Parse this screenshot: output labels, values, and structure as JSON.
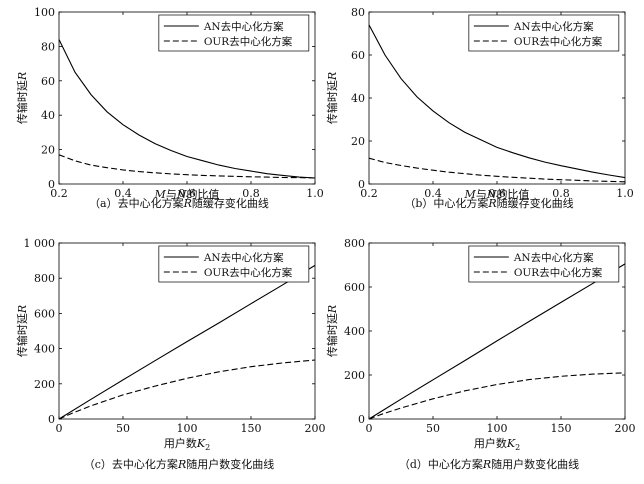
{
  "chart_data": [
    {
      "id": "a",
      "type": "line",
      "caption": "（a）去中心化方案R随缓存变化曲线",
      "xlabel": "M与N的比值",
      "ylabel": "传输时延R",
      "xlim": [
        0.2,
        1.0
      ],
      "ylim": [
        0,
        100
      ],
      "xticks": [
        "0.2",
        "0.4",
        "0.6",
        "0.8",
        "1.0"
      ],
      "yticks": [
        "0",
        "20",
        "40",
        "60",
        "80",
        "100"
      ],
      "legend": [
        "AN去中心化方案",
        "OUR去中心化方案"
      ],
      "series": [
        {
          "name": "AN去中心化方案",
          "style": "solid",
          "x": [
            0.2,
            0.25,
            0.3,
            0.35,
            0.4,
            0.45,
            0.5,
            0.55,
            0.6,
            0.65,
            0.7,
            0.75,
            0.8,
            0.85,
            0.9,
            0.95,
            1.0
          ],
          "values": [
            84,
            65,
            52,
            42,
            34.5,
            28.5,
            23.5,
            19.5,
            16,
            13.5,
            11,
            9,
            7.5,
            6,
            5,
            4,
            3.5
          ]
        },
        {
          "name": "OUR去中心化方案",
          "style": "dashed",
          "x": [
            0.2,
            0.25,
            0.3,
            0.35,
            0.4,
            0.45,
            0.5,
            0.55,
            0.6,
            0.65,
            0.7,
            0.75,
            0.8,
            0.85,
            0.9,
            0.95,
            1.0
          ],
          "values": [
            17,
            13.5,
            11,
            9.5,
            8.2,
            7.2,
            6.5,
            5.9,
            5.4,
            5,
            4.7,
            4.4,
            4.2,
            4,
            3.8,
            3.7,
            3.5
          ]
        }
      ]
    },
    {
      "id": "b",
      "type": "line",
      "caption": "（b）中心化方案R随缓存变化曲线",
      "xlabel": "M与N的比值",
      "ylabel": "传输时延R",
      "xlim": [
        0.2,
        1.0
      ],
      "ylim": [
        0,
        80
      ],
      "xticks": [
        "0.2",
        "0.4",
        "0.6",
        "0.8",
        "1.0"
      ],
      "yticks": [
        "0",
        "20",
        "40",
        "60",
        "80"
      ],
      "legend": [
        "AN去中心化方案",
        "OUR去中心化方案"
      ],
      "series": [
        {
          "name": "AN去中心化方案",
          "style": "solid",
          "x": [
            0.2,
            0.25,
            0.3,
            0.35,
            0.4,
            0.45,
            0.5,
            0.55,
            0.6,
            0.65,
            0.7,
            0.75,
            0.8,
            0.85,
            0.9,
            0.95,
            1.0
          ],
          "values": [
            74,
            60,
            49,
            40.5,
            34,
            28.5,
            24,
            20.5,
            17,
            14.5,
            12.2,
            10.2,
            8.5,
            7,
            5.5,
            4.2,
            3
          ]
        },
        {
          "name": "OUR去中心化方案",
          "style": "dashed",
          "x": [
            0.2,
            0.25,
            0.3,
            0.35,
            0.4,
            0.45,
            0.5,
            0.55,
            0.6,
            0.65,
            0.7,
            0.75,
            0.8,
            0.85,
            0.9,
            0.95,
            1.0
          ],
          "values": [
            12,
            10,
            8.6,
            7.4,
            6.4,
            5.5,
            4.8,
            4.1,
            3.6,
            3.1,
            2.7,
            2.3,
            2,
            1.7,
            1.4,
            1.2,
            1
          ]
        }
      ]
    },
    {
      "id": "c",
      "type": "line",
      "caption": "（c）去中心化方案R随用户数变化曲线",
      "xlabel": "用户数K2",
      "ylabel": "传输时延R",
      "xlim": [
        0,
        200
      ],
      "ylim": [
        0,
        1000
      ],
      "xticks": [
        "0",
        "50",
        "100",
        "150",
        "200"
      ],
      "yticks": [
        "0",
        "200",
        "400",
        "600",
        "800",
        "1 000"
      ],
      "legend": [
        "AN去中心化方案",
        "OUR去中心化方案"
      ],
      "series": [
        {
          "name": "AN去中心化方案",
          "style": "solid",
          "x": [
            0,
            25,
            50,
            75,
            100,
            125,
            150,
            175,
            200
          ],
          "values": [
            0,
            112,
            222,
            331,
            440,
            546,
            655,
            763,
            873
          ]
        },
        {
          "name": "OUR去中心化方案",
          "style": "dashed",
          "x": [
            0,
            10,
            25,
            50,
            75,
            100,
            125,
            150,
            175,
            200
          ],
          "values": [
            0,
            32,
            75,
            137,
            187,
            231,
            268,
            297,
            319,
            335
          ]
        }
      ]
    },
    {
      "id": "d",
      "type": "line",
      "caption": "（d）中心化方案R随用户数变化曲线",
      "xlabel": "用户数K2",
      "ylabel": "传输时延R",
      "xlim": [
        0,
        200
      ],
      "ylim": [
        0,
        800
      ],
      "xticks": [
        "0",
        "50",
        "100",
        "150",
        "200"
      ],
      "yticks": [
        "0",
        "200",
        "400",
        "600",
        "800"
      ],
      "legend": [
        "AN去中心化方案",
        "OUR去中心化方案"
      ],
      "series": [
        {
          "name": "AN去中心化方案",
          "style": "solid",
          "x": [
            0,
            25,
            50,
            75,
            100,
            125,
            150,
            175,
            200
          ],
          "values": [
            0,
            90,
            178,
            266,
            355,
            443,
            530,
            617,
            705
          ]
        },
        {
          "name": "OUR去中心化方案",
          "style": "dashed",
          "x": [
            0,
            10,
            25,
            50,
            75,
            100,
            125,
            150,
            175,
            200
          ],
          "values": [
            0,
            22,
            50,
            92,
            128,
            157,
            179,
            194,
            204,
            210
          ]
        }
      ]
    }
  ]
}
